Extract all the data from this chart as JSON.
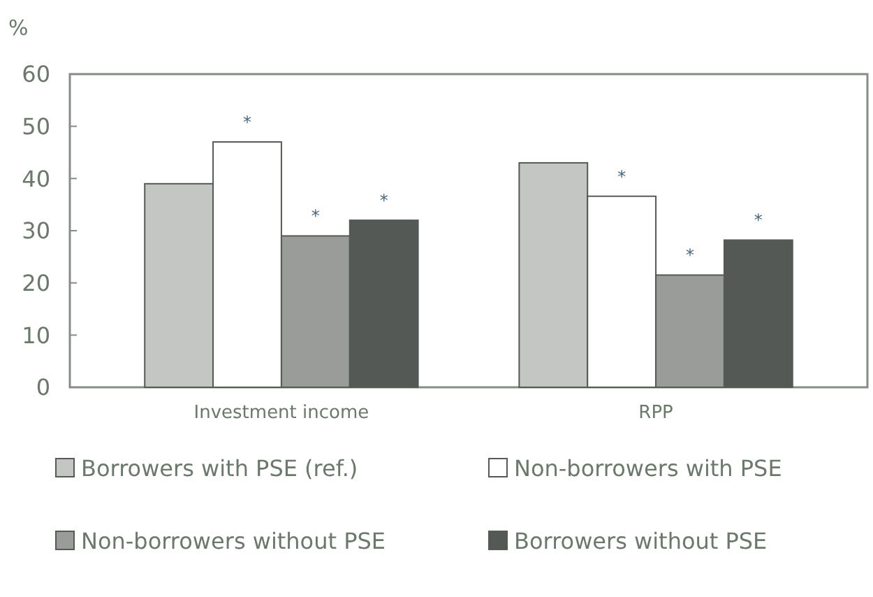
{
  "chart_data": {
    "type": "bar",
    "ylabel": "%",
    "categories": [
      "Investment income",
      "RPP"
    ],
    "series": [
      {
        "name": "Borrowers with PSE (ref.)",
        "color": "#c4c6c4",
        "values": [
          39,
          43
        ]
      },
      {
        "name": "Non-borrowers with PSE",
        "color": "#ffffff",
        "values": [
          47,
          36.6
        ]
      },
      {
        "name": "Non-borrowers without PSE",
        "color": "#9a9c9a",
        "values": [
          29,
          21.5
        ]
      },
      {
        "name": "Borrowers without PSE",
        "color": "#555955",
        "values": [
          32,
          28.2
        ]
      }
    ],
    "ylim": [
      0,
      60
    ],
    "yticks": [
      0,
      10,
      20,
      30,
      40,
      50,
      60
    ],
    "grid": false,
    "legend": "bottom",
    "annotations": [
      "*",
      "*",
      "*",
      "*",
      "*",
      "*"
    ]
  }
}
